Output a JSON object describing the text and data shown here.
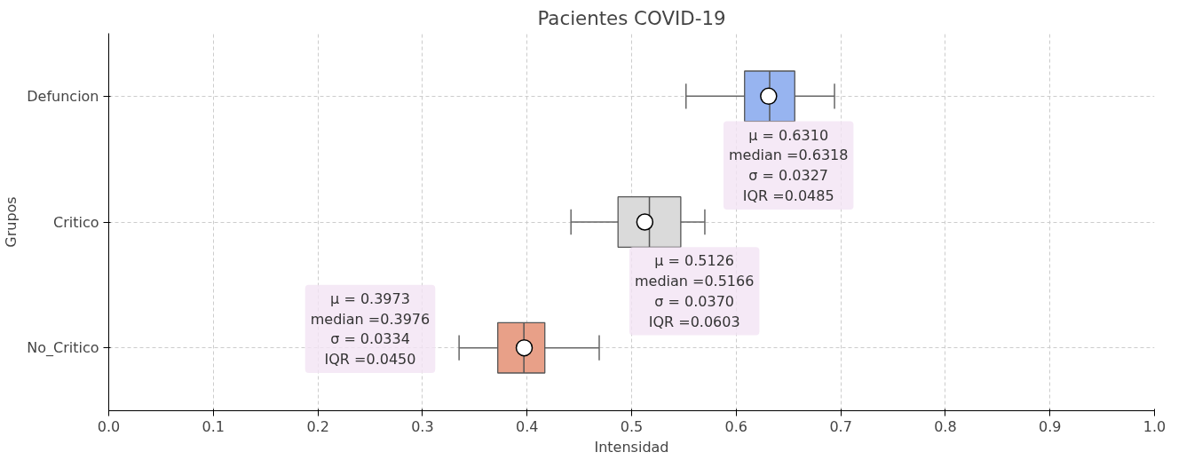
{
  "chart_data": {
    "type": "box",
    "title": "Pacientes COVID-19",
    "xlabel": "Intensidad",
    "ylabel": "Grupos",
    "orientation": "horizontal",
    "categories": [
      "Defuncion",
      "Critico",
      "No_Critico"
    ],
    "colors": [
      "#97b4f0",
      "#dadada",
      "#e8a088"
    ],
    "boxes": [
      {
        "low": 0.552,
        "q1": 0.608,
        "median": 0.632,
        "q3": 0.656,
        "high": 0.694,
        "mean": 0.631
      },
      {
        "low": 0.442,
        "q1": 0.487,
        "median": 0.517,
        "q3": 0.547,
        "high": 0.57,
        "mean": 0.5126
      },
      {
        "low": 0.335,
        "q1": 0.372,
        "median": 0.397,
        "q3": 0.417,
        "high": 0.469,
        "mean": 0.3973
      }
    ],
    "xlim": [
      0,
      1
    ],
    "xticks": [
      {
        "value": 0,
        "label": "0.0"
      },
      0.1,
      0.2,
      0.3,
      0.4,
      0.5,
      0.6,
      0.7,
      0.8,
      0.9,
      {
        "value": 1,
        "label": "1.0"
      }
    ],
    "grid": true,
    "annotations": [
      "μ = 0.6310\nmedian =0.6318\nσ = 0.0327\nIQR =0.0485",
      "μ = 0.5126\nmedian =0.5166\nσ = 0.0370\nIQR =0.0603",
      "μ = 0.3973\nmedian =0.3976\nσ = 0.0334\nIQR =0.0450"
    ]
  }
}
